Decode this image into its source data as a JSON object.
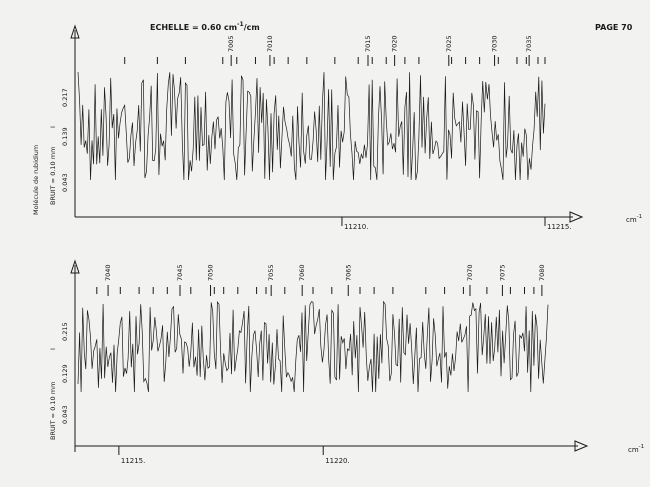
{
  "header": {
    "scale_label": "ECHELLE = 0.60 cm",
    "scale_exp": "-1",
    "scale_unit": "/cm",
    "page_label": "PAGE 70"
  },
  "chart_data": [
    {
      "type": "line",
      "title": "",
      "ylabel": "Molécule de rubidium",
      "noise_label": "BRUIT = 0.10 mm",
      "unit_label": "cm",
      "unit_exp": "-1",
      "marker_I": "I",
      "y_ticks": [
        "0.043",
        "0.139",
        "0.217"
      ],
      "x_ticks": [
        {
          "label": "11210.",
          "value": 11210
        },
        {
          "label": "11215.",
          "value": 11215
        }
      ],
      "xlim": [
        11203.5,
        11215
      ],
      "ylim": [
        0.0,
        0.26
      ],
      "line_numbers": [
        {
          "label": "7005",
          "pos": 0.328
        },
        {
          "label": "7010",
          "pos": 0.411
        },
        {
          "label": "7015",
          "pos": 0.621
        },
        {
          "label": "7020",
          "pos": 0.678
        },
        {
          "label": "7025",
          "pos": 0.794
        },
        {
          "label": "7030",
          "pos": 0.892
        },
        {
          "label": "7035",
          "pos": 0.966
        }
      ],
      "line_marker_pos": [
        0.1,
        0.17,
        0.23,
        0.31,
        0.34,
        0.38,
        0.42,
        0.45,
        0.49,
        0.55,
        0.6,
        0.63,
        0.66,
        0.7,
        0.73,
        0.8,
        0.83,
        0.86,
        0.9,
        0.94,
        0.96,
        0.985,
        1.0
      ],
      "seed": 7,
      "series": [
        {
          "values_band": [
            0.13,
            0.23
          ],
          "samples": 300
        }
      ]
    },
    {
      "type": "line",
      "title": "",
      "ylabel": "",
      "noise_label": "BRUIT = 0.10 mm",
      "unit_label": "cm",
      "unit_exp": "-1",
      "marker_I": "I",
      "y_ticks": [
        "0.043",
        "0.129",
        "0.215"
      ],
      "x_ticks": [
        {
          "label": "11215.",
          "value": 11215
        },
        {
          "label": "11220.",
          "value": 11220
        }
      ],
      "xlim": [
        11214,
        11225.5
      ],
      "ylim": [
        0.0,
        0.26
      ],
      "line_numbers": [
        {
          "label": "7040",
          "pos": 0.064
        },
        {
          "label": "7045",
          "pos": 0.217
        },
        {
          "label": "7050",
          "pos": 0.282
        },
        {
          "label": "7055",
          "pos": 0.411
        },
        {
          "label": "7060",
          "pos": 0.477
        },
        {
          "label": "7065",
          "pos": 0.575
        },
        {
          "label": "7070",
          "pos": 0.834
        },
        {
          "label": "7075",
          "pos": 0.903
        },
        {
          "label": "7080",
          "pos": 0.987
        }
      ],
      "line_marker_pos": [
        0.04,
        0.09,
        0.13,
        0.16,
        0.19,
        0.24,
        0.29,
        0.31,
        0.34,
        0.38,
        0.4,
        0.44,
        0.5,
        0.54,
        0.6,
        0.63,
        0.67,
        0.74,
        0.78,
        0.82,
        0.87,
        0.92,
        0.95,
        0.97
      ],
      "seed": 23,
      "series": [
        {
          "values_band": [
            0.12,
            0.23
          ],
          "samples": 300
        }
      ]
    }
  ]
}
